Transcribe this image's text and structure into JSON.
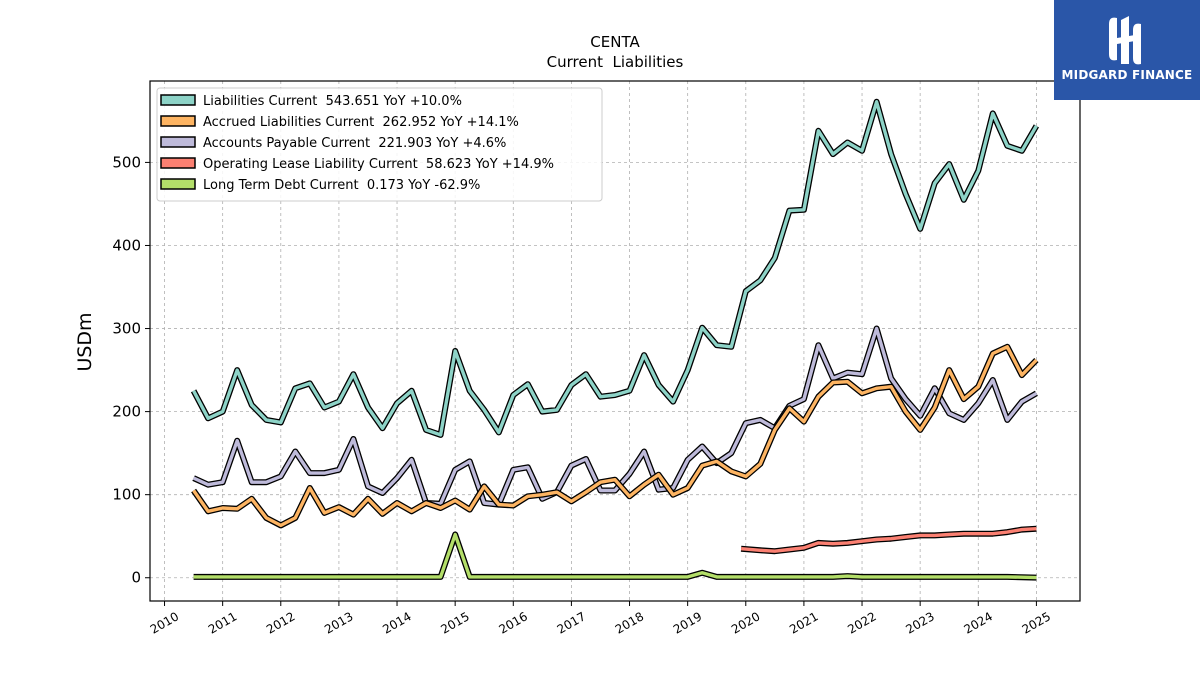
{
  "brand": {
    "name": "MIDGARD FINANCE",
    "color": "#2a56a8"
  },
  "chart_data": {
    "type": "line",
    "title": "CENTA",
    "subtitle": "Current  Liabilities",
    "xlabel": "",
    "ylabel": "USDm",
    "xlim": [
      2009.75,
      2025.75
    ],
    "ylim": [
      -28,
      598
    ],
    "x_ticks": [
      2010,
      2011,
      2012,
      2013,
      2014,
      2015,
      2016,
      2017,
      2018,
      2019,
      2020,
      2021,
      2022,
      2023,
      2024,
      2025
    ],
    "y_ticks": [
      0,
      100,
      200,
      300,
      400,
      500
    ],
    "grid": true,
    "legend_position": "top-left",
    "series": [
      {
        "name": "Liabilities Current",
        "legend_label": "Liabilities Current  543.651 YoY +10.0%",
        "color": "#8dd3c7",
        "x": [
          2010.5,
          2010.75,
          2011.0,
          2011.25,
          2011.5,
          2011.75,
          2012.0,
          2012.25,
          2012.5,
          2012.75,
          2013.0,
          2013.25,
          2013.5,
          2013.75,
          2014.0,
          2014.25,
          2014.5,
          2014.75,
          2015.0,
          2015.25,
          2015.5,
          2015.75,
          2016.0,
          2016.25,
          2016.5,
          2016.75,
          2017.0,
          2017.25,
          2017.5,
          2017.75,
          2018.0,
          2018.25,
          2018.5,
          2018.75,
          2019.0,
          2019.25,
          2019.5,
          2019.75,
          2020.0,
          2020.25,
          2020.5,
          2020.75,
          2021.0,
          2021.25,
          2021.5,
          2021.75,
          2022.0,
          2022.25,
          2022.5,
          2022.75,
          2023.0,
          2023.25,
          2023.5,
          2023.75,
          2024.0,
          2024.25,
          2024.5,
          2024.75,
          2025.0
        ],
        "values": [
          225,
          192,
          200,
          250,
          208,
          190,
          187,
          228,
          234,
          205,
          212,
          245,
          205,
          180,
          210,
          225,
          178,
          172,
          273,
          225,
          202,
          175,
          220,
          233,
          200,
          202,
          232,
          245,
          218,
          220,
          225,
          268,
          232,
          212,
          250,
          301,
          280,
          278,
          345,
          358,
          385,
          442,
          443,
          538,
          510,
          524,
          514,
          573,
          510,
          462,
          420,
          475,
          498,
          455,
          490,
          559,
          520,
          514,
          544
        ],
        "labels_hidden": true
      },
      {
        "name": "Accrued Liabilities Current",
        "legend_label": "Accrued Liabilities Current  262.952 YoY +14.1%",
        "color": "#fdb462",
        "x": [
          2010.5,
          2010.75,
          2011.0,
          2011.25,
          2011.5,
          2011.75,
          2012.0,
          2012.25,
          2012.5,
          2012.75,
          2013.0,
          2013.25,
          2013.5,
          2013.75,
          2014.0,
          2014.25,
          2014.5,
          2014.75,
          2015.0,
          2015.25,
          2015.5,
          2015.75,
          2016.0,
          2016.25,
          2016.5,
          2016.75,
          2017.0,
          2017.25,
          2017.5,
          2017.75,
          2018.0,
          2018.25,
          2018.5,
          2018.75,
          2019.0,
          2019.25,
          2019.5,
          2019.75,
          2020.0,
          2020.25,
          2020.5,
          2020.75,
          2021.0,
          2021.25,
          2021.5,
          2021.75,
          2022.0,
          2022.25,
          2022.5,
          2022.75,
          2023.0,
          2023.25,
          2023.5,
          2023.75,
          2024.0,
          2024.25,
          2024.5,
          2024.75,
          2025.0
        ],
        "values": [
          105,
          80,
          84,
          83,
          95,
          72,
          63,
          72,
          108,
          78,
          85,
          76,
          95,
          77,
          90,
          80,
          90,
          84,
          93,
          82,
          110,
          88,
          87,
          98,
          100,
          103,
          92,
          103,
          115,
          118,
          98,
          112,
          124,
          100,
          108,
          135,
          140,
          128,
          122,
          137,
          178,
          204,
          188,
          218,
          235,
          236,
          222,
          228,
          230,
          200,
          178,
          205,
          250,
          215,
          230,
          270,
          278,
          244,
          262
        ]
      },
      {
        "name": "Accounts Payable Current",
        "legend_label": "Accounts Payable Current  221.903 YoY +4.6%",
        "color": "#bebada",
        "x": [
          2010.5,
          2010.75,
          2011.0,
          2011.25,
          2011.5,
          2011.75,
          2012.0,
          2012.25,
          2012.5,
          2012.75,
          2013.0,
          2013.25,
          2013.5,
          2013.75,
          2014.0,
          2014.25,
          2014.5,
          2014.75,
          2015.0,
          2015.25,
          2015.5,
          2015.75,
          2016.0,
          2016.25,
          2016.5,
          2016.75,
          2017.0,
          2017.25,
          2017.5,
          2017.75,
          2018.0,
          2018.25,
          2018.5,
          2018.75,
          2019.0,
          2019.25,
          2019.5,
          2019.75,
          2020.0,
          2020.25,
          2020.5,
          2020.75,
          2021.0,
          2021.25,
          2021.5,
          2021.75,
          2022.0,
          2022.25,
          2022.5,
          2022.75,
          2023.0,
          2023.25,
          2023.5,
          2023.75,
          2024.0,
          2024.25,
          2024.5,
          2024.75,
          2025.0
        ],
        "values": [
          120,
          112,
          115,
          165,
          115,
          115,
          122,
          152,
          126,
          126,
          130,
          167,
          110,
          102,
          120,
          142,
          90,
          89,
          130,
          140,
          90,
          88,
          130,
          133,
          95,
          103,
          135,
          143,
          105,
          105,
          125,
          152,
          106,
          108,
          142,
          158,
          138,
          150,
          186,
          190,
          180,
          207,
          215,
          280,
          240,
          247,
          245,
          300,
          240,
          215,
          195,
          228,
          198,
          190,
          210,
          238,
          190,
          212,
          222
        ]
      },
      {
        "name": "Operating Lease Liability Current",
        "legend_label": "Operating Lease Liability Current  58.623 YoY +14.9%",
        "color": "#fb8072",
        "x": [
          2019.92,
          2020.25,
          2020.5,
          2020.75,
          2021.0,
          2021.25,
          2021.5,
          2021.75,
          2022.0,
          2022.25,
          2022.5,
          2022.75,
          2023.0,
          2023.25,
          2023.5,
          2023.75,
          2024.0,
          2024.25,
          2024.5,
          2024.75,
          2025.0
        ],
        "values": [
          35,
          33,
          32,
          34,
          36,
          42,
          41,
          42,
          44,
          46,
          47,
          49,
          51,
          51,
          52,
          53,
          53,
          53,
          55,
          58,
          59
        ]
      },
      {
        "name": "Long Term Debt Current",
        "legend_label": "Long Term Debt Current  0.173 YoY -62.9%",
        "color": "#b3de69",
        "x": [
          2010.5,
          2010.75,
          2011.0,
          2011.5,
          2012.0,
          2012.5,
          2013.0,
          2013.5,
          2014.0,
          2014.5,
          2014.75,
          2015.0,
          2015.25,
          2015.5,
          2016.0,
          2016.5,
          2017.0,
          2017.5,
          2018.0,
          2018.5,
          2019.0,
          2019.25,
          2019.5,
          2020.0,
          2020.5,
          2021.0,
          2021.5,
          2021.75,
          2022.0,
          2022.5,
          2023.0,
          2023.5,
          2024.0,
          2024.5,
          2025.0
        ],
        "values": [
          1,
          1,
          1,
          1,
          1,
          1,
          1,
          1,
          1,
          1,
          1,
          52,
          1,
          1,
          1,
          1,
          1,
          1,
          1,
          1,
          1,
          6,
          1,
          1,
          1,
          1,
          1,
          2,
          1,
          1,
          1,
          1,
          1,
          1,
          0.2
        ]
      }
    ]
  }
}
